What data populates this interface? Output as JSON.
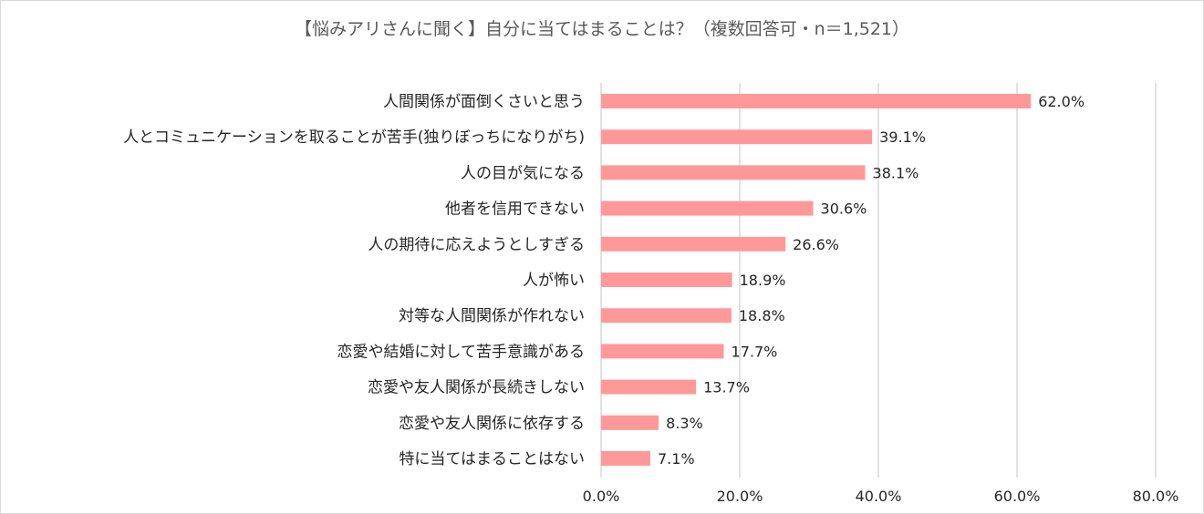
{
  "chart_data": {
    "type": "bar",
    "orientation": "horizontal",
    "title": "【悩みアリさんに聞く】自分に当てはまることは？（複数回答可・n＝1,521）",
    "categories": [
      "人間関係が面倒くさいと思う",
      "人とコミュニケーションを取ることが苦手(独りぼっちになりがち)",
      "人の目が気になる",
      "他者を信用できない",
      "人の期待に応えようとしすぎる",
      "人が怖い",
      "対等な人間関係が作れない",
      "恋愛や結婚に対して苦手意識がある",
      "恋愛や友人関係が長続きしない",
      "恋愛や友人関係に依存する",
      "特に当てはまることはない"
    ],
    "values": [
      62.0,
      39.1,
      38.1,
      30.6,
      26.6,
      18.9,
      18.8,
      17.7,
      13.7,
      8.3,
      7.1
    ],
    "data_labels": [
      "62.0%",
      "39.1%",
      "38.1%",
      "30.6%",
      "26.6%",
      "18.9%",
      "18.8%",
      "17.7%",
      "13.7%",
      "8.3%",
      "7.1%"
    ],
    "xlim": [
      0,
      80
    ],
    "ticks": [
      0,
      20,
      40,
      60,
      80
    ],
    "tick_labels": [
      "0.0%",
      "20.0%",
      "40.0%",
      "60.0%",
      "80.0%"
    ],
    "bar_color": "#ff9999",
    "grid": true,
    "legend": "none"
  }
}
